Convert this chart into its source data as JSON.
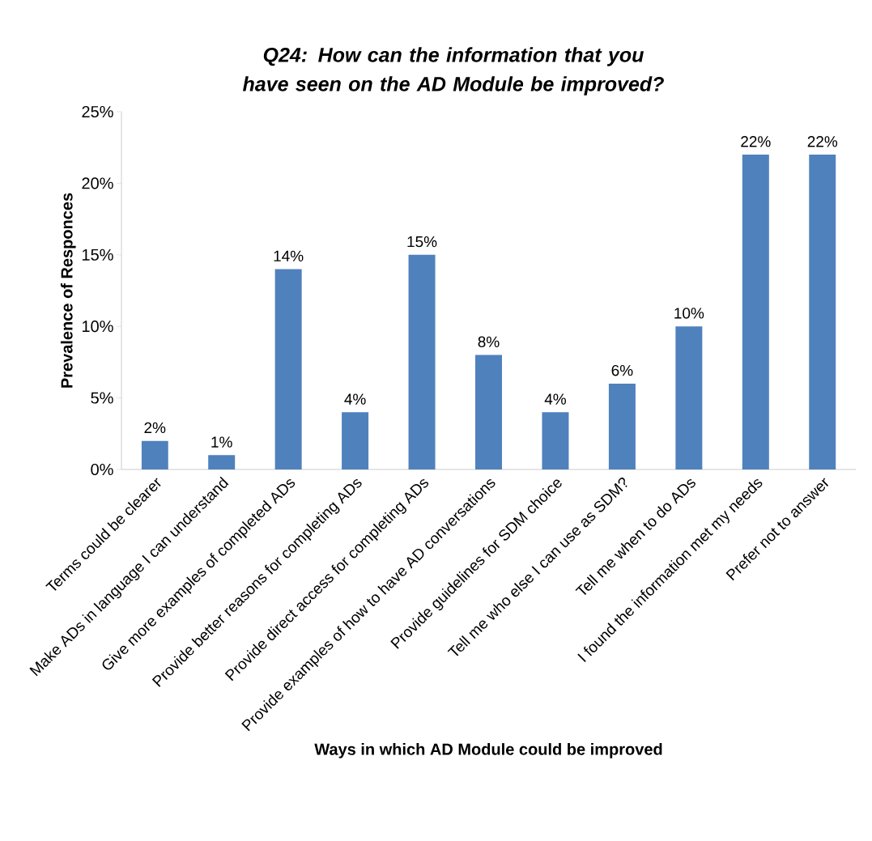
{
  "chart_data": {
    "type": "bar",
    "title": "Q24: How can the information that you have seen on the  AD Module be improved?",
    "xlabel": "Ways in which AD Module could be improved",
    "ylabel": "Prevalence of Responces",
    "categories": [
      "Terms could be clearer",
      "Make ADs in language I can understand",
      "Give more examples of completed ADs",
      "Provide better reasons for completing ADs",
      "Provide direct access for completing ADs",
      "Provide examples of how to have AD conversations",
      "Provide guidelines for SDM choice",
      "Tell me who else I can use as SDM?",
      "Tell me when to do ADs",
      "I found the information met my needs",
      "Prefer not to answer"
    ],
    "values": [
      2,
      1,
      14,
      4,
      15,
      8,
      4,
      6,
      10,
      22,
      22
    ],
    "value_labels": [
      "2%",
      "1%",
      "14%",
      "4%",
      "15%",
      "8%",
      "4%",
      "6%",
      "10%",
      "22%",
      "22%"
    ],
    "color": "#4f81bd",
    "ylim": [
      0,
      25
    ],
    "yticks": [
      {
        "value": 0,
        "label": "0%"
      },
      {
        "value": 5,
        "label": "5%"
      },
      {
        "value": 10,
        "label": "10%"
      },
      {
        "value": 15,
        "label": "15%"
      },
      {
        "value": 20,
        "label": "20%"
      },
      {
        "value": 25,
        "label": "25%"
      }
    ],
    "grid": false
  }
}
